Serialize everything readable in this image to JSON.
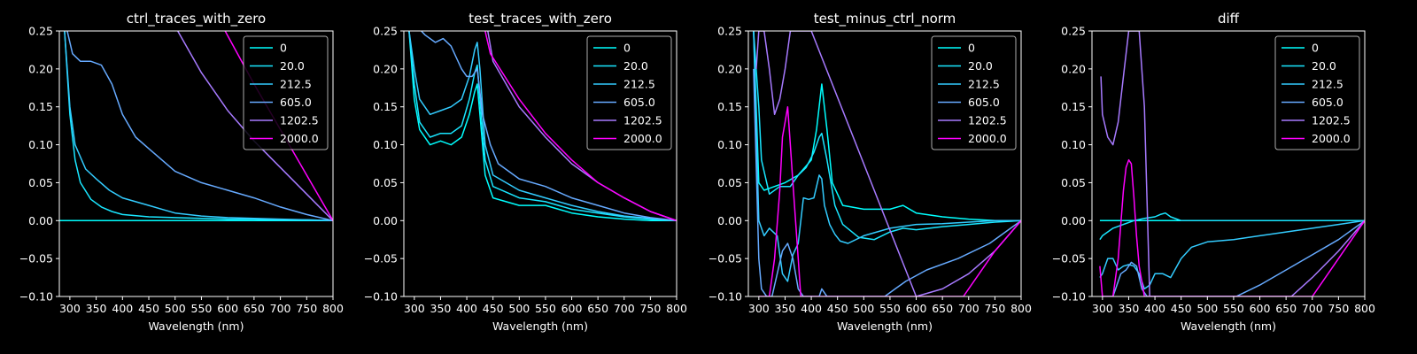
{
  "legend_entries": [
    "0",
    "20.0",
    "212.5",
    "605.0",
    "1202.5",
    "2000.0"
  ],
  "series_colors": [
    "#00ffff",
    "#19e6ff",
    "#33ccff",
    "#66aaff",
    "#a77aff",
    "#ff00ff"
  ],
  "chart_data": [
    {
      "type": "line",
      "title": "ctrl_traces_with_zero",
      "xlabel": "Wavelength (nm)",
      "ylabel": "",
      "xlim": [
        280,
        800
      ],
      "ylim": [
        -0.1,
        0.25
      ],
      "xticks": [
        "300",
        "350",
        "400",
        "450",
        "500",
        "550",
        "600",
        "650",
        "700",
        "750",
        "800"
      ],
      "yticks": [
        "−0.10",
        "−0.05",
        "0.00",
        "0.05",
        "0.10",
        "0.15",
        "0.20",
        "0.25"
      ],
      "legend": "top-right",
      "series": [
        {
          "name": "0",
          "x": [
            280,
            800
          ],
          "y": [
            0,
            0
          ]
        },
        {
          "name": "20.0",
          "x": [
            290,
            300,
            310,
            320,
            340,
            360,
            380,
            400,
            450,
            500,
            550,
            600,
            650,
            700,
            750,
            800
          ],
          "y": [
            0.25,
            0.14,
            0.08,
            0.05,
            0.028,
            0.018,
            0.012,
            0.008,
            0.005,
            0.004,
            0.003,
            0.002,
            0.002,
            0.001,
            0.001,
            0
          ]
        },
        {
          "name": "212.5",
          "x": [
            290,
            300,
            310,
            330,
            350,
            375,
            400,
            450,
            480,
            500,
            550,
            600,
            650,
            700,
            750,
            800
          ],
          "y": [
            0.25,
            0.15,
            0.1,
            0.068,
            0.055,
            0.04,
            0.03,
            0.02,
            0.014,
            0.01,
            0.006,
            0.004,
            0.003,
            0.002,
            0.001,
            0
          ]
        },
        {
          "name": "605.0",
          "x": [
            295,
            305,
            320,
            340,
            360,
            380,
            400,
            425,
            450,
            500,
            550,
            600,
            650,
            700,
            750,
            800
          ],
          "y": [
            0.25,
            0.22,
            0.21,
            0.21,
            0.205,
            0.18,
            0.14,
            0.11,
            0.095,
            0.065,
            0.05,
            0.04,
            0.03,
            0.018,
            0.008,
            0
          ]
        },
        {
          "name": "1202.5",
          "x": [
            505,
            550,
            600,
            650,
            700,
            750,
            800
          ],
          "y": [
            0.25,
            0.195,
            0.145,
            0.105,
            0.07,
            0.035,
            0
          ]
        },
        {
          "name": "2000.0",
          "x": [
            595,
            650,
            700,
            750,
            800
          ],
          "y": [
            0.25,
            0.18,
            0.12,
            0.06,
            0
          ]
        }
      ]
    },
    {
      "type": "line",
      "title": "test_traces_with_zero",
      "xlabel": "Wavelength (nm)",
      "ylabel": "",
      "xlim": [
        280,
        800
      ],
      "ylim": [
        -0.1,
        0.25
      ],
      "xticks": [
        "300",
        "350",
        "400",
        "450",
        "500",
        "550",
        "600",
        "650",
        "700",
        "750",
        "800"
      ],
      "yticks": [
        "−0.10",
        "−0.05",
        "0.00",
        "0.05",
        "0.10",
        "0.15",
        "0.20",
        "0.25"
      ],
      "legend": "top-right",
      "series": [
        {
          "name": "0",
          "x": [
            290,
            300,
            310,
            330,
            350,
            370,
            390,
            405,
            415,
            420,
            425,
            435,
            450,
            500,
            550,
            600,
            650,
            700,
            750,
            800
          ],
          "y": [
            0.25,
            0.16,
            0.12,
            0.1,
            0.105,
            0.1,
            0.11,
            0.14,
            0.17,
            0.18,
            0.14,
            0.06,
            0.03,
            0.02,
            0.02,
            0.01,
            0.005,
            0.002,
            0,
            0
          ]
        },
        {
          "name": "20.0",
          "x": [
            290,
            300,
            310,
            330,
            350,
            370,
            390,
            405,
            415,
            420,
            425,
            435,
            450,
            500,
            550,
            600,
            650,
            700,
            750,
            800
          ],
          "y": [
            0.25,
            0.18,
            0.13,
            0.11,
            0.115,
            0.115,
            0.125,
            0.16,
            0.195,
            0.205,
            0.16,
            0.08,
            0.045,
            0.03,
            0.025,
            0.015,
            0.01,
            0.005,
            0.002,
            0
          ]
        },
        {
          "name": "212.5",
          "x": [
            290,
            300,
            310,
            330,
            350,
            370,
            390,
            405,
            415,
            420,
            425,
            435,
            450,
            500,
            550,
            600,
            650,
            700,
            750,
            800
          ],
          "y": [
            0.25,
            0.2,
            0.16,
            0.14,
            0.145,
            0.15,
            0.16,
            0.19,
            0.225,
            0.235,
            0.2,
            0.1,
            0.06,
            0.04,
            0.03,
            0.02,
            0.012,
            0.006,
            0.003,
            0
          ]
        },
        {
          "name": "605.0",
          "x": [
            290,
            300,
            320,
            340,
            355,
            370,
            380,
            390,
            400,
            410,
            420,
            430,
            445,
            460,
            500,
            550,
            600,
            650,
            700,
            750,
            800
          ],
          "y": [
            0.25,
            0.26,
            0.245,
            0.235,
            0.24,
            0.23,
            0.215,
            0.2,
            0.19,
            0.19,
            0.2,
            0.14,
            0.1,
            0.075,
            0.055,
            0.045,
            0.03,
            0.02,
            0.01,
            0.004,
            0
          ]
        },
        {
          "name": "1202.5",
          "x": [
            440,
            450,
            500,
            550,
            600,
            650,
            700,
            750,
            800
          ],
          "y": [
            0.25,
            0.21,
            0.15,
            0.11,
            0.075,
            0.05,
            0.03,
            0.012,
            0
          ]
        },
        {
          "name": "2000.0",
          "x": [
            435,
            445,
            500,
            550,
            600,
            650,
            700,
            750,
            800
          ],
          "y": [
            0.25,
            0.22,
            0.16,
            0.115,
            0.08,
            0.05,
            0.03,
            0.012,
            0
          ]
        }
      ]
    },
    {
      "type": "line",
      "title": "test_minus_ctrl_norm",
      "xlabel": "Wavelength (nm)",
      "ylabel": "",
      "xlim": [
        280,
        800
      ],
      "ylim": [
        -0.1,
        0.25
      ],
      "xticks": [
        "300",
        "350",
        "400",
        "450",
        "500",
        "550",
        "600",
        "650",
        "700",
        "750",
        "800"
      ],
      "yticks": [
        "−0.10",
        "−0.05",
        "0.00",
        "0.05",
        "0.10",
        "0.15",
        "0.20",
        "0.25"
      ],
      "legend": "top-right",
      "series": [
        {
          "name": "0",
          "x": [
            290,
            300,
            310,
            330,
            350,
            375,
            400,
            410,
            420,
            430,
            440,
            460,
            500,
            550,
            575,
            600,
            650,
            700,
            750,
            800
          ],
          "y": [
            0.25,
            0.05,
            0.04,
            0.045,
            0.05,
            0.06,
            0.08,
            0.12,
            0.18,
            0.12,
            0.05,
            0.02,
            0.015,
            0.015,
            0.02,
            0.01,
            0.005,
            0.002,
            0,
            0
          ]
        },
        {
          "name": "20.0",
          "x": [
            290,
            300,
            305,
            320,
            340,
            360,
            375,
            390,
            405,
            415,
            420,
            430,
            445,
            460,
            490,
            520,
            550,
            575,
            600,
            650,
            700,
            750,
            800
          ],
          "y": [
            0.25,
            0.15,
            0.08,
            0.035,
            0.045,
            0.045,
            0.06,
            0.07,
            0.09,
            0.11,
            0.115,
            0.08,
            0.02,
            -0.005,
            -0.022,
            -0.025,
            -0.015,
            -0.01,
            -0.012,
            -0.008,
            -0.005,
            -0.002,
            0
          ]
        },
        {
          "name": "212.5",
          "x": [
            290,
            300,
            310,
            320,
            335,
            345,
            355,
            365,
            375,
            385,
            395,
            405,
            415,
            420,
            425,
            435,
            445,
            455,
            470,
            500,
            550,
            600,
            650,
            700,
            750,
            800
          ],
          "y": [
            0.25,
            0.0,
            -0.02,
            -0.01,
            -0.02,
            -0.07,
            -0.08,
            -0.045,
            -0.03,
            0.03,
            0.028,
            0.03,
            0.06,
            0.055,
            0.02,
            -0.005,
            -0.018,
            -0.027,
            -0.03,
            -0.02,
            -0.01,
            -0.005,
            -0.004,
            -0.002,
            0,
            0
          ]
        },
        {
          "name": "605.0",
          "x": [
            290,
            300,
            305,
            315,
            325,
            335,
            345,
            355,
            365,
            375,
            385,
            395,
            405,
            415,
            420,
            430,
            440,
            500,
            540,
            560,
            580,
            620,
            680,
            740,
            800
          ],
          "y": [
            0.2,
            -0.05,
            -0.09,
            -0.1,
            -0.1,
            -0.07,
            -0.04,
            -0.03,
            -0.05,
            -0.09,
            -0.1,
            -0.1,
            -0.1,
            -0.1,
            -0.09,
            -0.1,
            -0.1,
            -0.1,
            -0.1,
            -0.09,
            -0.08,
            -0.065,
            -0.05,
            -0.03,
            0
          ]
        },
        {
          "name": "1202.5",
          "x": [
            295,
            300,
            310,
            320,
            330,
            340,
            350,
            360,
            370,
            380,
            390,
            400,
            600,
            650,
            700,
            750,
            800
          ],
          "y": [
            0.2,
            0.25,
            0.25,
            0.2,
            0.14,
            0.16,
            0.2,
            0.25,
            0.25,
            0.25,
            0.25,
            0.25,
            -0.1,
            -0.09,
            -0.07,
            -0.04,
            0
          ]
        },
        {
          "name": "2000.0",
          "x": [
            300,
            310,
            320,
            330,
            340,
            345,
            350,
            355,
            360,
            365,
            370,
            375,
            380,
            390,
            690,
            720,
            750,
            800
          ],
          "y": [
            -0.1,
            -0.1,
            -0.1,
            -0.05,
            0.04,
            0.11,
            0.13,
            0.15,
            0.1,
            0.05,
            0.0,
            -0.05,
            -0.1,
            -0.1,
            -0.1,
            -0.07,
            -0.04,
            0
          ]
        }
      ]
    },
    {
      "type": "line",
      "title": "diff",
      "xlabel": "Wavelength (nm)",
      "ylabel": "",
      "xlim": [
        280,
        800
      ],
      "ylim": [
        -0.1,
        0.25
      ],
      "xticks": [
        "300",
        "350",
        "400",
        "450",
        "500",
        "550",
        "600",
        "650",
        "700",
        "750",
        "800"
      ],
      "yticks": [
        "−0.10",
        "−0.05",
        "0.00",
        "0.05",
        "0.10",
        "0.15",
        "0.20",
        "0.25"
      ],
      "legend": "top-right",
      "series": [
        {
          "name": "0",
          "x": [
            295,
            800
          ],
          "y": [
            0,
            0
          ]
        },
        {
          "name": "20.0",
          "x": [
            295,
            300,
            320,
            340,
            360,
            380,
            400,
            410,
            420,
            430,
            450,
            500,
            550,
            600,
            650,
            700,
            750,
            800
          ],
          "y": [
            -0.025,
            -0.02,
            -0.01,
            -0.005,
            0,
            0.003,
            0.005,
            0.008,
            0.01,
            0.005,
            0.0,
            0.0,
            0.0,
            0.0,
            0.0,
            0.0,
            0.0,
            0
          ]
        },
        {
          "name": "212.5",
          "x": [
            295,
            300,
            310,
            320,
            330,
            340,
            350,
            360,
            370,
            380,
            390,
            400,
            415,
            430,
            450,
            470,
            500,
            550,
            600,
            650,
            700,
            750,
            800
          ],
          "y": [
            -0.075,
            -0.07,
            -0.05,
            -0.05,
            -0.065,
            -0.06,
            -0.058,
            -0.06,
            -0.07,
            -0.09,
            -0.085,
            -0.07,
            -0.07,
            -0.075,
            -0.05,
            -0.035,
            -0.028,
            -0.025,
            -0.02,
            -0.015,
            -0.01,
            -0.005,
            0
          ]
        },
        {
          "name": "605.0",
          "x": [
            300,
            310,
            320,
            335,
            345,
            355,
            365,
            375,
            385,
            395,
            555,
            600,
            650,
            700,
            750,
            800
          ],
          "y": [
            -0.1,
            -0.1,
            -0.1,
            -0.07,
            -0.065,
            -0.055,
            -0.06,
            -0.09,
            -0.1,
            -0.1,
            -0.1,
            -0.085,
            -0.065,
            -0.045,
            -0.025,
            0
          ]
        },
        {
          "name": "1202.5",
          "x": [
            297,
            300,
            310,
            320,
            330,
            340,
            350,
            360,
            370,
            380,
            390,
            400,
            660,
            700,
            750,
            800
          ],
          "y": [
            0.19,
            0.14,
            0.11,
            0.1,
            0.13,
            0.19,
            0.25,
            0.25,
            0.25,
            0.15,
            -0.1,
            -0.1,
            -0.1,
            -0.075,
            -0.04,
            0
          ]
        },
        {
          "name": "2000.0",
          "x": [
            295,
            300,
            310,
            320,
            330,
            340,
            345,
            350,
            355,
            360,
            365,
            370,
            380,
            700,
            740,
            800
          ],
          "y": [
            -0.06,
            -0.1,
            -0.1,
            -0.1,
            -0.05,
            0.04,
            0.07,
            0.08,
            0.075,
            0.03,
            -0.02,
            -0.06,
            -0.1,
            -0.1,
            -0.06,
            0
          ]
        }
      ]
    }
  ]
}
